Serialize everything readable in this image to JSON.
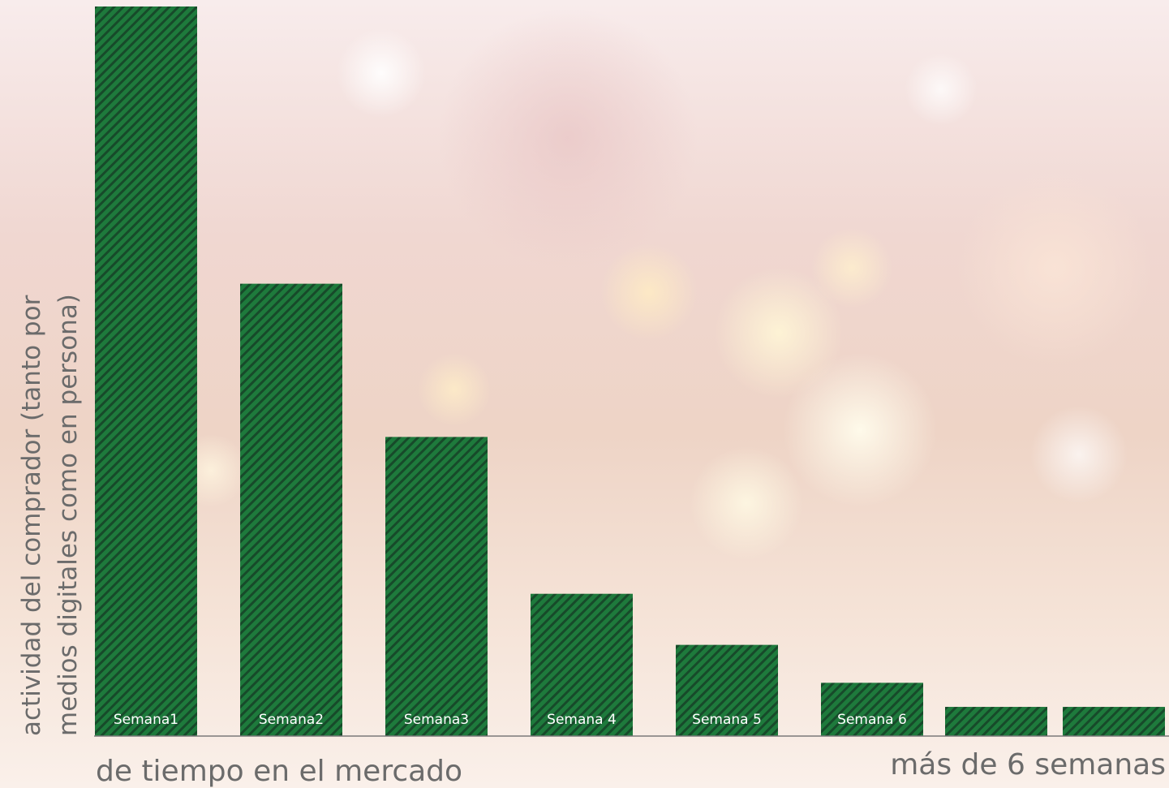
{
  "chart_data": {
    "type": "bar",
    "categories": [
      "Semana1",
      "Semana2",
      "Semana3",
      "Semana 4",
      "Semana 5",
      "Semana 6",
      "",
      ""
    ],
    "values": [
      100,
      62,
      41,
      19.5,
      12.5,
      7.3,
      4,
      4
    ],
    "ylim": [
      0,
      100
    ],
    "ylabel": [
      "actividad del comprador (tanto por",
      "medios digitales como en persona)"
    ],
    "xlabel": "de tiempo en el mercado",
    "xlabel_right": "más de 6 semanas",
    "colors": {
      "bar": "#1e7a3c",
      "stripe": "#174a2a",
      "label": "#ffffff",
      "axis": "#7a7a7a",
      "text": "#6b6b6b"
    },
    "grid": false,
    "legend": "none"
  }
}
